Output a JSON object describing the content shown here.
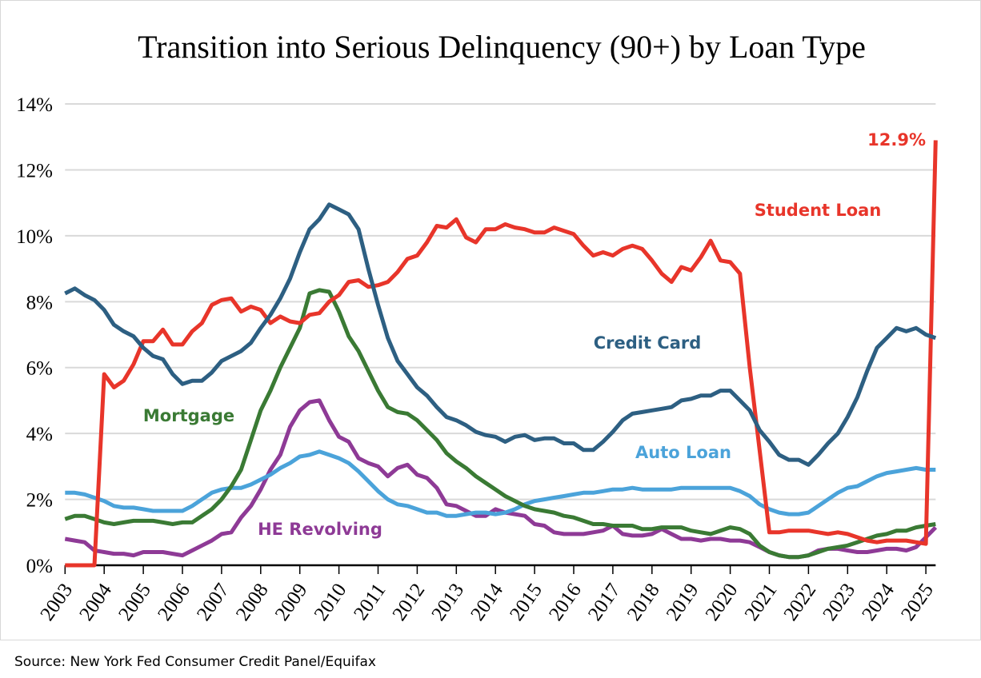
{
  "chart_data": {
    "type": "line",
    "title": "Transition into Serious Delinquency (90+) by Loan Type",
    "source": "Source: New York Fed Consumer Credit Panel/Equifax",
    "xlabel": "",
    "ylabel": "",
    "x_start": 2003,
    "x_step": 0.25,
    "xlim": [
      2003,
      2025.25
    ],
    "ylim": [
      0,
      14
    ],
    "grid": true,
    "y_ticks": [
      0,
      2,
      4,
      6,
      8,
      10,
      12,
      14
    ],
    "y_tick_labels": [
      "0%",
      "2%",
      "4%",
      "6%",
      "8%",
      "10%",
      "12%",
      "14%"
    ],
    "x_tick_labels": [
      "2003",
      "2004",
      "2005",
      "2006",
      "2007",
      "2008",
      "2009",
      "2010",
      "2011",
      "2012",
      "2013",
      "2014",
      "2015",
      "2016",
      "2017",
      "2018",
      "2019",
      "2020",
      "2021",
      "2022",
      "2023",
      "2024",
      "2025"
    ],
    "annotation": {
      "text": "12.9%",
      "series": "Student Loan",
      "x": 2025.25,
      "y": 12.9
    },
    "series": [
      {
        "name": "Student Loan",
        "color": "#E8352A",
        "values": [
          0,
          0,
          0,
          0,
          5.8,
          5.4,
          5.6,
          6.1,
          6.8,
          6.8,
          7.15,
          6.7,
          6.7,
          7.1,
          7.35,
          7.9,
          8.05,
          8.1,
          7.7,
          7.85,
          7.75,
          7.35,
          7.55,
          7.4,
          7.35,
          7.6,
          7.65,
          8.0,
          8.2,
          8.6,
          8.65,
          8.45,
          8.5,
          8.6,
          8.9,
          9.3,
          9.4,
          9.8,
          10.3,
          10.25,
          10.5,
          9.95,
          9.8,
          10.2,
          10.2,
          10.35,
          10.25,
          10.2,
          10.1,
          10.1,
          10.25,
          10.15,
          10.05,
          9.7,
          9.4,
          9.5,
          9.4,
          9.6,
          9.7,
          9.6,
          9.25,
          8.85,
          8.6,
          9.05,
          8.95,
          9.35,
          9.85,
          9.25,
          9.2,
          8.85,
          6.0,
          3.5,
          1.0,
          1.0,
          1.05,
          1.05,
          1.05,
          1.0,
          0.95,
          1.0,
          0.95,
          0.85,
          0.75,
          0.7,
          0.75,
          0.75,
          0.75,
          0.7,
          0.65,
          12.9
        ]
      },
      {
        "name": "Credit Card",
        "color": "#2D5F82",
        "values": [
          8.25,
          8.4,
          8.2,
          8.05,
          7.75,
          7.3,
          7.1,
          6.95,
          6.6,
          6.35,
          6.25,
          5.8,
          5.5,
          5.6,
          5.6,
          5.85,
          6.2,
          6.35,
          6.5,
          6.75,
          7.2,
          7.6,
          8.1,
          8.7,
          9.5,
          10.2,
          10.5,
          10.95,
          10.8,
          10.65,
          10.2,
          9.0,
          7.9,
          6.9,
          6.2,
          5.8,
          5.4,
          5.15,
          4.8,
          4.5,
          4.4,
          4.25,
          4.05,
          3.95,
          3.9,
          3.75,
          3.9,
          3.95,
          3.8,
          3.85,
          3.85,
          3.7,
          3.7,
          3.5,
          3.5,
          3.75,
          4.05,
          4.4,
          4.6,
          4.65,
          4.7,
          4.75,
          4.8,
          5.0,
          5.05,
          5.15,
          5.15,
          5.3,
          5.3,
          5.0,
          4.7,
          4.1,
          3.75,
          3.35,
          3.2,
          3.2,
          3.05,
          3.35,
          3.7,
          4.0,
          4.5,
          5.1,
          5.9,
          6.6,
          6.9,
          7.2,
          7.1,
          7.2,
          7.0,
          6.9
        ]
      },
      {
        "name": "Mortgage",
        "color": "#3A7A34",
        "values": [
          1.4,
          1.5,
          1.5,
          1.4,
          1.3,
          1.25,
          1.3,
          1.35,
          1.35,
          1.35,
          1.3,
          1.25,
          1.3,
          1.3,
          1.5,
          1.7,
          2.0,
          2.4,
          2.9,
          3.8,
          4.7,
          5.3,
          6.0,
          6.6,
          7.2,
          8.25,
          8.35,
          8.3,
          7.7,
          6.95,
          6.5,
          5.9,
          5.3,
          4.8,
          4.65,
          4.6,
          4.4,
          4.1,
          3.8,
          3.4,
          3.15,
          2.95,
          2.7,
          2.5,
          2.3,
          2.1,
          1.95,
          1.8,
          1.7,
          1.65,
          1.6,
          1.5,
          1.45,
          1.35,
          1.25,
          1.25,
          1.2,
          1.2,
          1.2,
          1.1,
          1.1,
          1.15,
          1.15,
          1.15,
          1.05,
          1.0,
          0.95,
          1.05,
          1.15,
          1.1,
          0.95,
          0.6,
          0.4,
          0.3,
          0.25,
          0.25,
          0.3,
          0.4,
          0.5,
          0.55,
          0.6,
          0.7,
          0.8,
          0.9,
          0.95,
          1.05,
          1.05,
          1.15,
          1.2,
          1.25
        ]
      },
      {
        "name": "Auto Loan",
        "color": "#4BA3DA",
        "values": [
          2.2,
          2.2,
          2.15,
          2.05,
          1.95,
          1.8,
          1.75,
          1.75,
          1.7,
          1.65,
          1.65,
          1.65,
          1.65,
          1.8,
          2.0,
          2.2,
          2.3,
          2.35,
          2.35,
          2.45,
          2.6,
          2.75,
          2.95,
          3.1,
          3.3,
          3.35,
          3.45,
          3.35,
          3.25,
          3.1,
          2.85,
          2.55,
          2.25,
          2.0,
          1.85,
          1.8,
          1.7,
          1.6,
          1.6,
          1.5,
          1.5,
          1.55,
          1.6,
          1.6,
          1.55,
          1.6,
          1.7,
          1.85,
          1.95,
          2.0,
          2.05,
          2.1,
          2.15,
          2.2,
          2.2,
          2.25,
          2.3,
          2.3,
          2.35,
          2.3,
          2.3,
          2.3,
          2.3,
          2.35,
          2.35,
          2.35,
          2.35,
          2.35,
          2.35,
          2.25,
          2.1,
          1.85,
          1.7,
          1.6,
          1.55,
          1.55,
          1.6,
          1.8,
          2.0,
          2.2,
          2.35,
          2.4,
          2.55,
          2.7,
          2.8,
          2.85,
          2.9,
          2.95,
          2.9,
          2.9
        ]
      },
      {
        "name": "HE Revolving",
        "color": "#8E3A96",
        "values": [
          0.8,
          0.75,
          0.7,
          0.45,
          0.4,
          0.35,
          0.35,
          0.3,
          0.4,
          0.4,
          0.4,
          0.35,
          0.3,
          0.45,
          0.6,
          0.75,
          0.95,
          1.0,
          1.45,
          1.8,
          2.3,
          2.9,
          3.35,
          4.2,
          4.7,
          4.95,
          5.0,
          4.4,
          3.9,
          3.75,
          3.25,
          3.1,
          3.0,
          2.7,
          2.95,
          3.05,
          2.75,
          2.65,
          2.35,
          1.85,
          1.8,
          1.65,
          1.5,
          1.5,
          1.7,
          1.6,
          1.55,
          1.5,
          1.25,
          1.2,
          1.0,
          0.95,
          0.95,
          0.95,
          1.0,
          1.05,
          1.2,
          0.95,
          0.9,
          0.9,
          0.95,
          1.1,
          0.95,
          0.8,
          0.8,
          0.75,
          0.8,
          0.8,
          0.75,
          0.75,
          0.7,
          0.55,
          0.4,
          0.3,
          0.25,
          0.25,
          0.3,
          0.45,
          0.5,
          0.5,
          0.45,
          0.4,
          0.4,
          0.45,
          0.5,
          0.5,
          0.45,
          0.55,
          0.85,
          1.15
        ]
      }
    ]
  }
}
